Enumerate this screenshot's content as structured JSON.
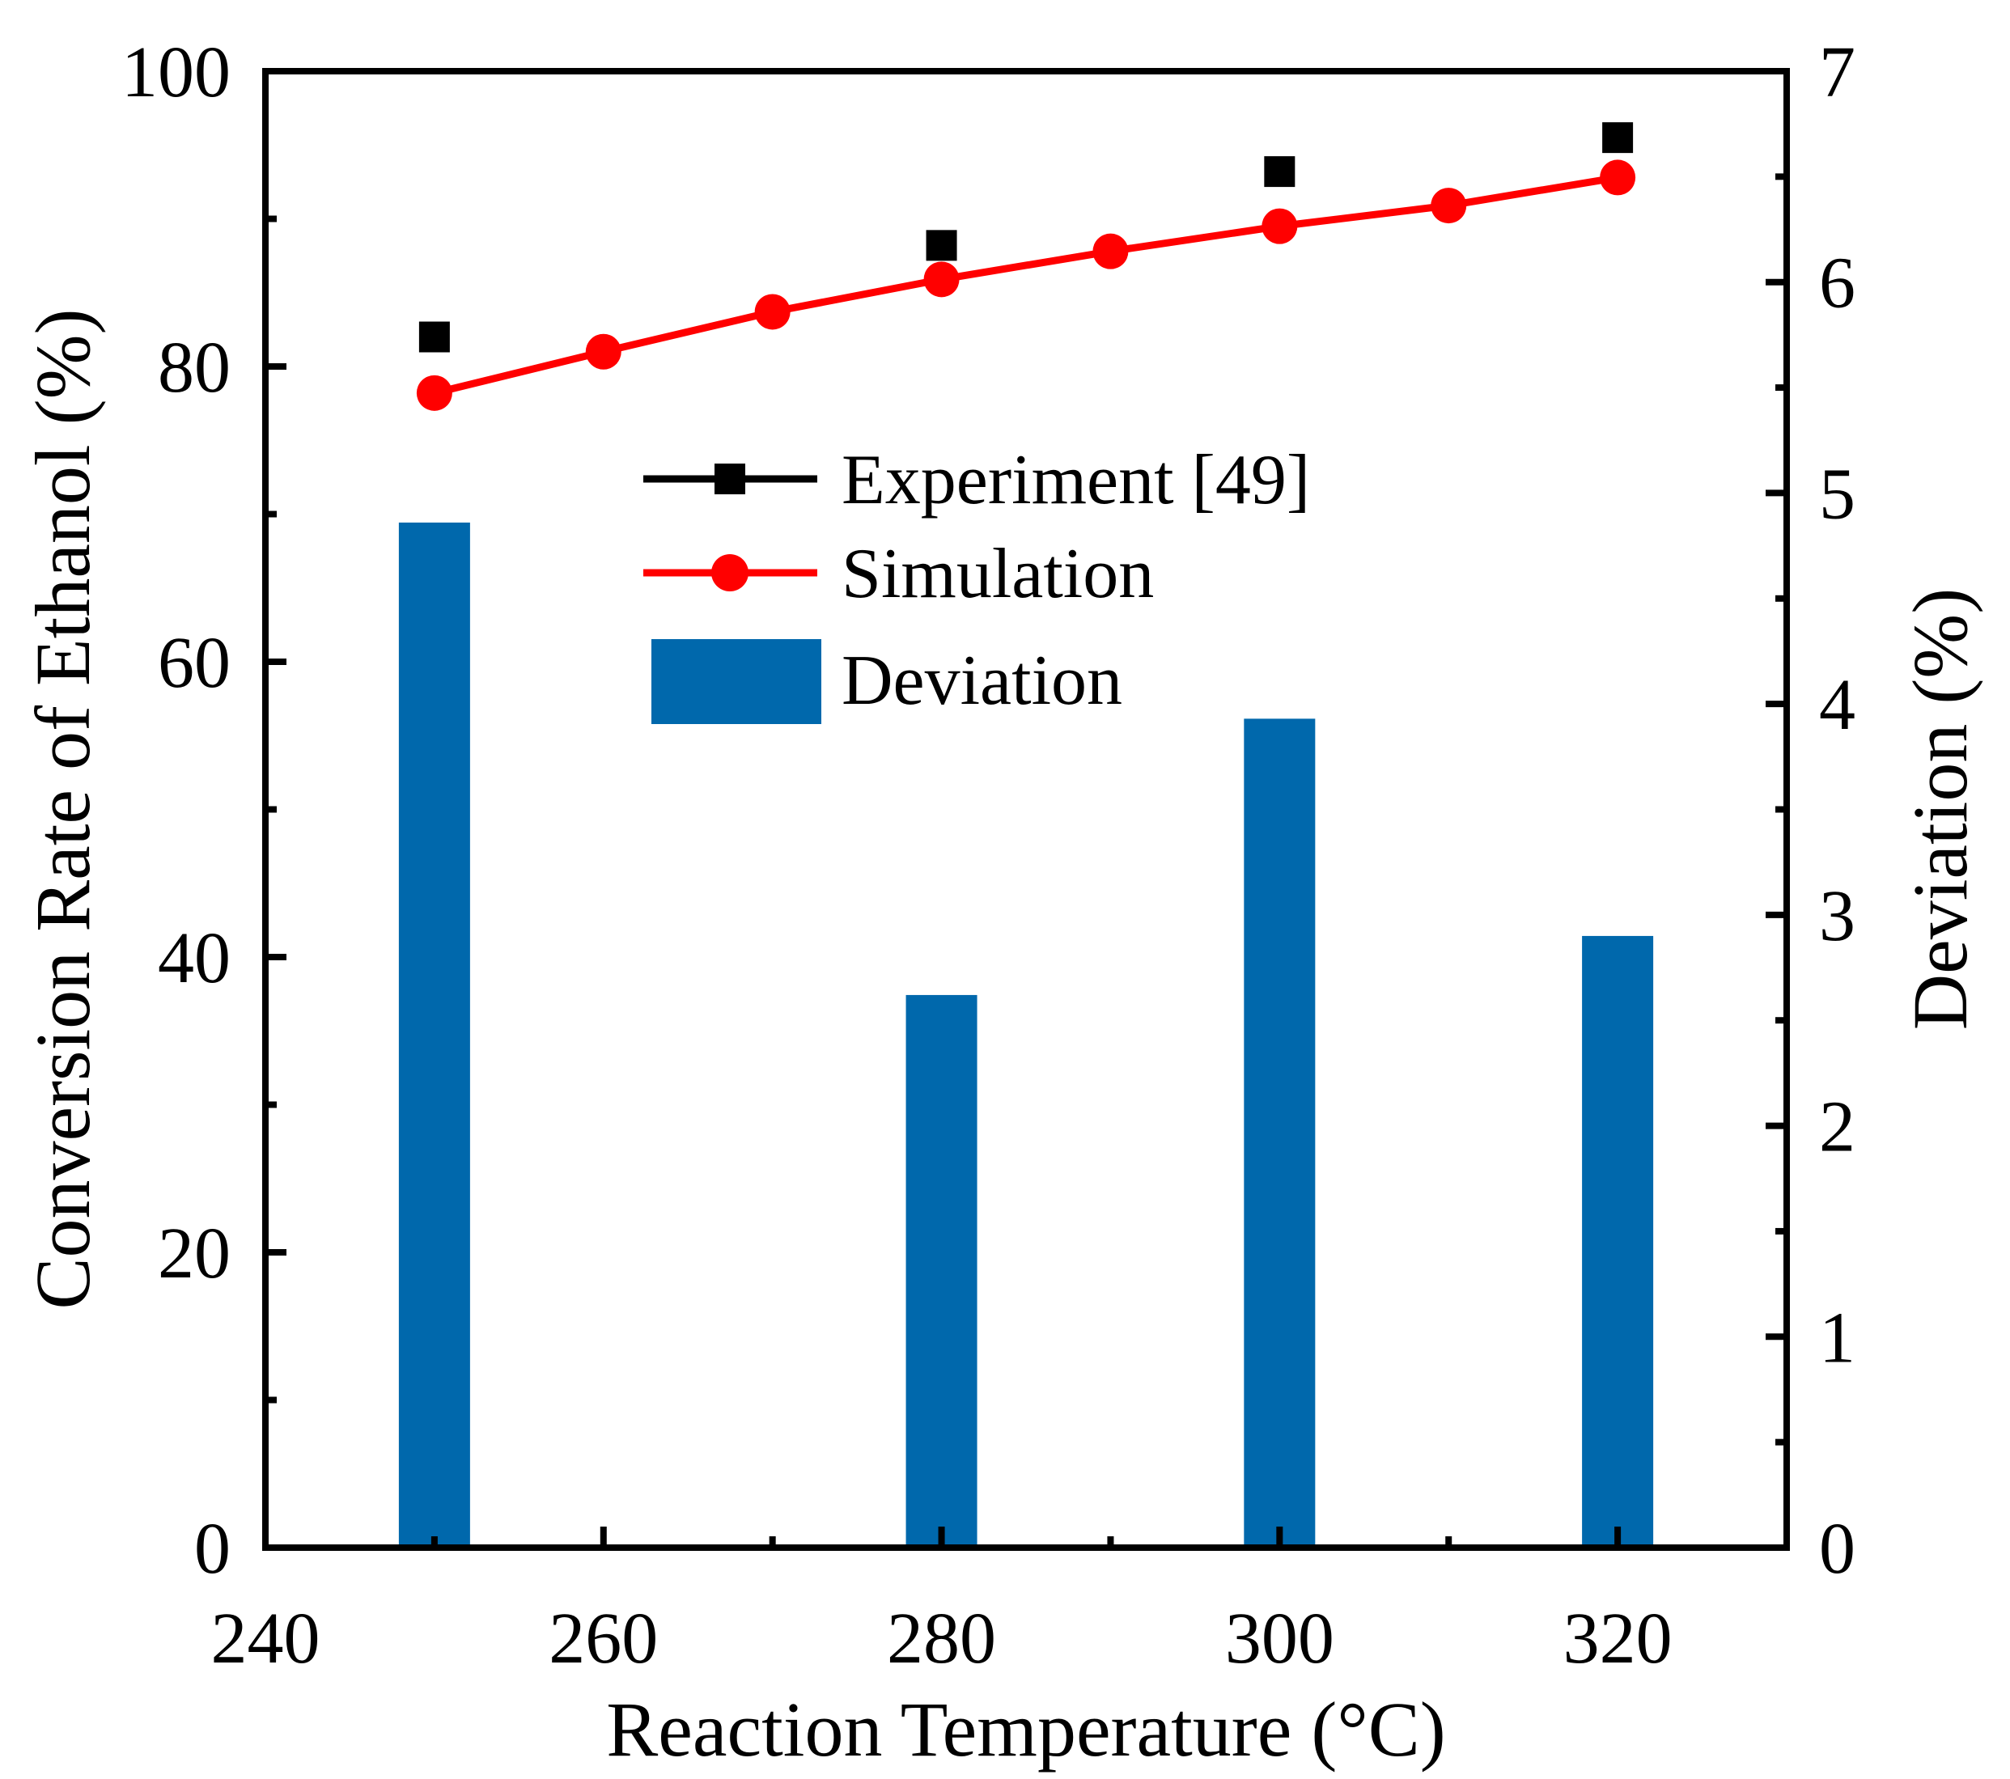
{
  "chart_data": {
    "type": "bar",
    "xlabel": "Reaction Temperature (°C)",
    "ylabel": "Conversion Rate of Ethanol (%)",
    "y2label": "Deviation (%)",
    "xlim": [
      240,
      330
    ],
    "ylim": [
      0,
      100
    ],
    "y2lim": [
      0,
      7
    ],
    "x_ticks": [
      240,
      260,
      280,
      300,
      320
    ],
    "y_ticks": [
      0,
      20,
      40,
      60,
      80,
      100
    ],
    "y2_ticks": [
      0,
      1,
      2,
      3,
      4,
      5,
      6,
      7
    ],
    "legend_position": "center",
    "series": [
      {
        "name": "Experiment [49]",
        "type": "scatter",
        "axis": "left",
        "color": "#000000",
        "marker": "square",
        "x": [
          250,
          280,
          300,
          320
        ],
        "y": [
          82.0,
          88.2,
          93.2,
          95.5
        ]
      },
      {
        "name": "Simulation",
        "type": "line",
        "axis": "left",
        "color": "#ff0000",
        "marker": "circle",
        "x": [
          250,
          260,
          270,
          280,
          290,
          300,
          310,
          320
        ],
        "y": [
          78.2,
          81.0,
          83.7,
          85.9,
          87.8,
          89.5,
          90.9,
          92.8
        ]
      },
      {
        "name": "Deviation",
        "type": "bar",
        "axis": "right",
        "color": "#0068ac",
        "x": [
          250,
          280,
          300,
          320
        ],
        "y": [
          4.86,
          2.62,
          3.93,
          2.9
        ]
      }
    ]
  }
}
